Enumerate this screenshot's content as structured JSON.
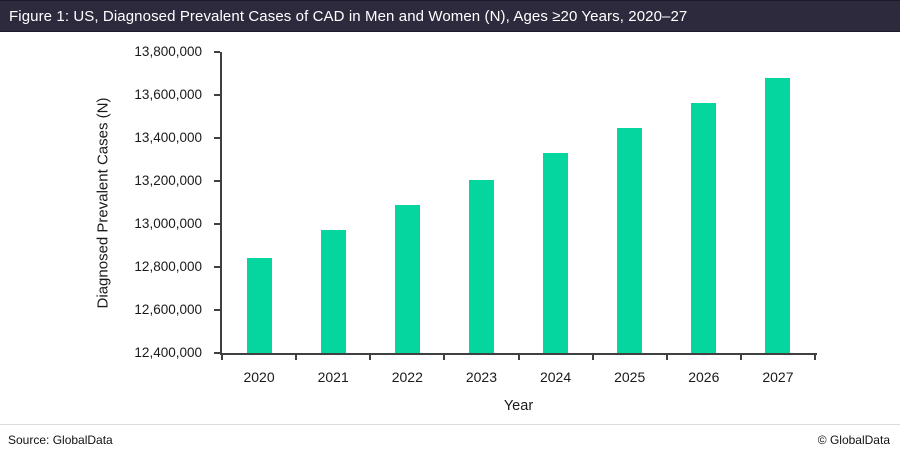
{
  "title_bar": {
    "text": "Figure 1: US, Diagnosed Prevalent Cases of CAD in Men and Women (N), Ages ≥20 Years, 2020–27",
    "bg_color": "#2e2a3e",
    "text_color": "#ffffff"
  },
  "footer": {
    "source": "Source: GlobalData",
    "copyright": "© GlobalData"
  },
  "chart_data": {
    "type": "bar",
    "title": "US, Diagnosed Prevalent Cases of CAD in Men and Women (N), Ages ≥20 Years, 2020–27",
    "categories": [
      "2020",
      "2021",
      "2022",
      "2023",
      "2024",
      "2025",
      "2026",
      "2027"
    ],
    "values": [
      12840000,
      12970000,
      13090000,
      13205000,
      13330000,
      13445000,
      13565000,
      13680000
    ],
    "xlabel": "Year",
    "ylabel": "Diagnosed Prevalent Cases (N)",
    "ylim": [
      12400000,
      13800000
    ],
    "ytick_step": 200000,
    "ytick_values": [
      12400000,
      12600000,
      12800000,
      13000000,
      13200000,
      13400000,
      13600000,
      13800000
    ],
    "ytick_labels": [
      "12,400,000",
      "12,600,000",
      "12,800,000",
      "13,000,000",
      "13,200,000",
      "13,400,000",
      "13,600,000",
      "13,800,000"
    ],
    "bar_color": "#05d6a0",
    "axis_color": "#404040",
    "grid": false,
    "legend_position": "none"
  }
}
